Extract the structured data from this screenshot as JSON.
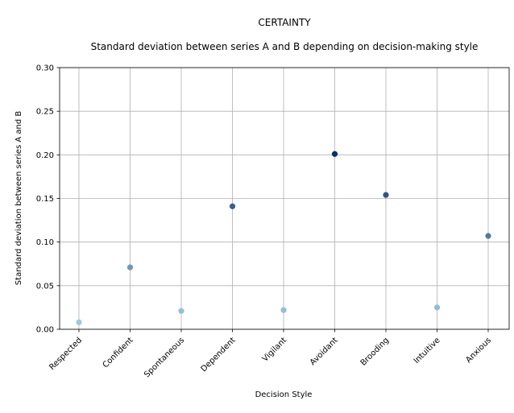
{
  "chart_data": {
    "type": "scatter",
    "suptitle": "CERTAINTY",
    "title": "Standard deviation between series A and B depending on decision-making style",
    "xlabel": "Decision Style",
    "ylabel": "Standard deviation between series A and B",
    "categories": [
      "Respected",
      "Confident",
      "Spontaneous",
      "Dependent",
      "Vigilant",
      "Avoidant",
      "Brooding",
      "Intuitive",
      "Anxious"
    ],
    "values": [
      0.008,
      0.071,
      0.021,
      0.141,
      0.022,
      0.201,
      0.154,
      0.025,
      0.107
    ],
    "ylim": [
      0,
      0.3
    ],
    "yticks": [
      "0.00",
      "0.05",
      "0.10",
      "0.15",
      "0.20",
      "0.25",
      "0.30"
    ],
    "grid": true,
    "color_scale": [
      "#9ecae1",
      "#08306b"
    ]
  }
}
